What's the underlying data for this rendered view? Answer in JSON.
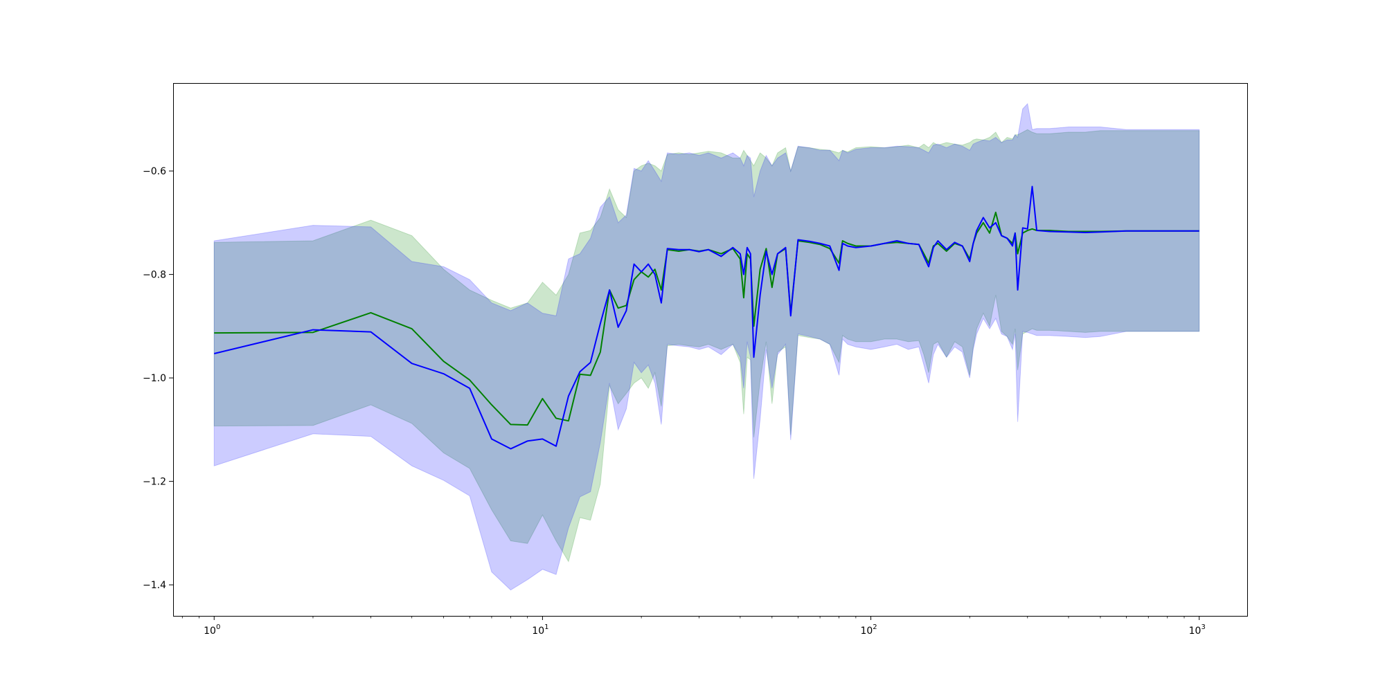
{
  "chart_data": {
    "type": "area",
    "title": "",
    "xlabel": "",
    "ylabel": "",
    "xscale": "log",
    "xlim": [
      0.75,
      1400
    ],
    "ylim": [
      -1.46,
      -0.43
    ],
    "grid": false,
    "x_ticks": [
      {
        "value": 1,
        "base": "10",
        "exp": "0"
      },
      {
        "value": 10,
        "base": "10",
        "exp": "1"
      },
      {
        "value": 100,
        "base": "10",
        "exp": "2"
      },
      {
        "value": 1000,
        "base": "10",
        "exp": "3"
      }
    ],
    "y_ticks": [
      {
        "value": -1.4,
        "label": "−1.4"
      },
      {
        "value": -1.2,
        "label": "−1.2"
      },
      {
        "value": -1.0,
        "label": "−1.0"
      },
      {
        "value": -0.8,
        "label": "−0.8"
      },
      {
        "value": -0.6,
        "label": "−0.6"
      }
    ],
    "series": [
      {
        "color": "#008000",
        "fill_color": "#008000",
        "fill_opacity": 0.2,
        "x": [
          1,
          2,
          3,
          4,
          5,
          6,
          7,
          8,
          9,
          10,
          11,
          12,
          13,
          14,
          15,
          16,
          17,
          18,
          19,
          20,
          21,
          22,
          23,
          24,
          26,
          28,
          30,
          32,
          35,
          38,
          40,
          41,
          42,
          43,
          44,
          46,
          48,
          50,
          52,
          55,
          57,
          60,
          65,
          70,
          75,
          80,
          82,
          85,
          90,
          100,
          110,
          120,
          130,
          140,
          145,
          150,
          155,
          160,
          170,
          180,
          190,
          200,
          205,
          210,
          220,
          230,
          240,
          250,
          260,
          270,
          275,
          280,
          290,
          300,
          310,
          320,
          350,
          400,
          450,
          500,
          600,
          800,
          1000
        ],
        "y": [
          -0.913,
          -0.912,
          -0.874,
          -0.905,
          -0.968,
          -1.004,
          -1.052,
          -1.09,
          -1.091,
          -1.04,
          -1.078,
          -1.083,
          -0.993,
          -0.995,
          -0.95,
          -0.83,
          -0.865,
          -0.86,
          -0.81,
          -0.795,
          -0.805,
          -0.79,
          -0.83,
          -0.752,
          -0.755,
          -0.752,
          -0.755,
          -0.752,
          -0.76,
          -0.75,
          -0.77,
          -0.845,
          -0.76,
          -0.77,
          -0.9,
          -0.79,
          -0.75,
          -0.825,
          -0.76,
          -0.75,
          -0.875,
          -0.735,
          -0.738,
          -0.742,
          -0.75,
          -0.778,
          -0.735,
          -0.74,
          -0.745,
          -0.745,
          -0.74,
          -0.738,
          -0.74,
          -0.742,
          -0.76,
          -0.778,
          -0.745,
          -0.74,
          -0.755,
          -0.74,
          -0.745,
          -0.77,
          -0.74,
          -0.72,
          -0.7,
          -0.72,
          -0.68,
          -0.725,
          -0.73,
          -0.74,
          -0.72,
          -0.76,
          -0.72,
          -0.715,
          -0.712,
          -0.715,
          -0.715,
          -0.717,
          -0.717,
          -0.717,
          -0.716,
          -0.716,
          -0.716
        ],
        "upper": [
          -0.738,
          -0.735,
          -0.695,
          -0.725,
          -0.79,
          -0.83,
          -0.85,
          -0.865,
          -0.855,
          -0.815,
          -0.84,
          -0.8,
          -0.72,
          -0.715,
          -0.69,
          -0.635,
          -0.675,
          -0.69,
          -0.6,
          -0.59,
          -0.585,
          -0.59,
          -0.6,
          -0.568,
          -0.565,
          -0.568,
          -0.565,
          -0.562,
          -0.565,
          -0.575,
          -0.575,
          -0.56,
          -0.57,
          -0.58,
          -0.59,
          -0.565,
          -0.575,
          -0.59,
          -0.565,
          -0.555,
          -0.6,
          -0.553,
          -0.555,
          -0.558,
          -0.56,
          -0.565,
          -0.56,
          -0.563,
          -0.555,
          -0.553,
          -0.555,
          -0.553,
          -0.55,
          -0.555,
          -0.548,
          -0.555,
          -0.545,
          -0.55,
          -0.545,
          -0.548,
          -0.55,
          -0.545,
          -0.54,
          -0.538,
          -0.54,
          -0.535,
          -0.525,
          -0.545,
          -0.535,
          -0.538,
          -0.53,
          -0.53,
          -0.525,
          -0.52,
          -0.525,
          -0.528,
          -0.528,
          -0.525,
          -0.525,
          -0.522,
          -0.522,
          -0.522,
          -0.522
        ],
        "lower": [
          -1.093,
          -1.092,
          -1.052,
          -1.088,
          -1.145,
          -1.175,
          -1.255,
          -1.315,
          -1.32,
          -1.265,
          -1.315,
          -1.355,
          -1.27,
          -1.275,
          -1.205,
          -1.015,
          -1.05,
          -1.03,
          -1.01,
          -1.0,
          -1.02,
          -0.99,
          -1.055,
          -0.938,
          -0.935,
          -0.938,
          -0.94,
          -0.935,
          -0.945,
          -0.935,
          -0.97,
          -1.07,
          -0.96,
          -0.965,
          -1.115,
          -1.005,
          -0.93,
          -1.05,
          -0.95,
          -0.94,
          -1.11,
          -0.918,
          -0.922,
          -0.925,
          -0.935,
          -0.97,
          -0.918,
          -0.925,
          -0.93,
          -0.93,
          -0.925,
          -0.925,
          -0.93,
          -0.928,
          -0.955,
          -0.99,
          -0.935,
          -0.93,
          -0.96,
          -0.93,
          -0.94,
          -0.995,
          -0.94,
          -0.905,
          -0.875,
          -0.9,
          -0.84,
          -0.91,
          -0.92,
          -0.935,
          -0.905,
          -0.985,
          -0.915,
          -0.91,
          -0.905,
          -0.908,
          -0.908,
          -0.91,
          -0.912,
          -0.91,
          -0.91,
          -0.91,
          -0.91
        ]
      },
      {
        "color": "#0000ff",
        "fill_color": "#0000ff",
        "fill_opacity": 0.2,
        "x": [
          1,
          2,
          3,
          4,
          5,
          6,
          7,
          8,
          9,
          10,
          11,
          12,
          13,
          14,
          15,
          16,
          17,
          18,
          19,
          20,
          21,
          22,
          23,
          24,
          26,
          28,
          30,
          32,
          35,
          38,
          40,
          41,
          42,
          43,
          44,
          46,
          48,
          50,
          52,
          55,
          57,
          60,
          65,
          70,
          75,
          80,
          82,
          85,
          90,
          100,
          110,
          120,
          130,
          140,
          145,
          150,
          155,
          160,
          170,
          180,
          190,
          200,
          205,
          210,
          220,
          230,
          240,
          250,
          260,
          270,
          275,
          280,
          290,
          300,
          310,
          320,
          350,
          400,
          450,
          500,
          600,
          800,
          1000
        ],
        "y": [
          -0.953,
          -0.907,
          -0.911,
          -0.972,
          -0.992,
          -1.02,
          -1.118,
          -1.137,
          -1.122,
          -1.118,
          -1.132,
          -1.035,
          -0.988,
          -0.97,
          -0.895,
          -0.83,
          -0.902,
          -0.87,
          -0.78,
          -0.795,
          -0.78,
          -0.8,
          -0.855,
          -0.75,
          -0.752,
          -0.752,
          -0.756,
          -0.752,
          -0.765,
          -0.748,
          -0.76,
          -0.8,
          -0.748,
          -0.76,
          -0.96,
          -0.84,
          -0.755,
          -0.8,
          -0.76,
          -0.748,
          -0.88,
          -0.733,
          -0.736,
          -0.74,
          -0.745,
          -0.792,
          -0.74,
          -0.745,
          -0.748,
          -0.745,
          -0.74,
          -0.735,
          -0.74,
          -0.742,
          -0.765,
          -0.785,
          -0.748,
          -0.735,
          -0.752,
          -0.738,
          -0.745,
          -0.775,
          -0.74,
          -0.715,
          -0.69,
          -0.71,
          -0.7,
          -0.725,
          -0.73,
          -0.745,
          -0.72,
          -0.83,
          -0.71,
          -0.712,
          -0.63,
          -0.715,
          -0.717,
          -0.718,
          -0.719,
          -0.718,
          -0.716,
          -0.716,
          -0.716
        ],
        "upper": [
          -0.735,
          -0.705,
          -0.708,
          -0.775,
          -0.785,
          -0.81,
          -0.855,
          -0.87,
          -0.855,
          -0.875,
          -0.88,
          -0.77,
          -0.76,
          -0.73,
          -0.67,
          -0.65,
          -0.7,
          -0.685,
          -0.595,
          -0.6,
          -0.58,
          -0.6,
          -0.62,
          -0.565,
          -0.568,
          -0.565,
          -0.57,
          -0.565,
          -0.575,
          -0.565,
          -0.575,
          -0.59,
          -0.57,
          -0.575,
          -0.65,
          -0.6,
          -0.57,
          -0.59,
          -0.575,
          -0.565,
          -0.6,
          -0.552,
          -0.555,
          -0.56,
          -0.56,
          -0.58,
          -0.56,
          -0.565,
          -0.558,
          -0.555,
          -0.555,
          -0.552,
          -0.553,
          -0.555,
          -0.56,
          -0.565,
          -0.55,
          -0.548,
          -0.555,
          -0.548,
          -0.552,
          -0.56,
          -0.548,
          -0.545,
          -0.54,
          -0.542,
          -0.535,
          -0.545,
          -0.54,
          -0.54,
          -0.53,
          -0.535,
          -0.48,
          -0.47,
          -0.52,
          -0.518,
          -0.518,
          -0.515,
          -0.515,
          -0.515,
          -0.52,
          -0.52,
          -0.52
        ],
        "lower": [
          -1.17,
          -1.108,
          -1.113,
          -1.17,
          -1.198,
          -1.228,
          -1.375,
          -1.41,
          -1.39,
          -1.37,
          -1.38,
          -1.29,
          -1.23,
          -1.22,
          -1.125,
          -1.01,
          -1.1,
          -1.06,
          -0.97,
          -0.99,
          -0.975,
          -1.01,
          -1.09,
          -0.935,
          -0.938,
          -0.94,
          -0.945,
          -0.94,
          -0.955,
          -0.935,
          -0.96,
          -1.02,
          -0.93,
          -0.96,
          -1.195,
          -1.08,
          -0.945,
          -1.02,
          -0.955,
          -0.935,
          -1.12,
          -0.915,
          -0.92,
          -0.925,
          -0.935,
          -0.995,
          -0.925,
          -0.935,
          -0.94,
          -0.945,
          -0.94,
          -0.935,
          -0.945,
          -0.94,
          -0.975,
          -1.01,
          -0.955,
          -0.935,
          -0.96,
          -0.94,
          -0.95,
          -1.0,
          -0.945,
          -0.915,
          -0.885,
          -0.905,
          -0.885,
          -0.915,
          -0.92,
          -0.945,
          -0.915,
          -1.085,
          -0.91,
          -0.912,
          -0.915,
          -0.918,
          -0.918,
          -0.92,
          -0.922,
          -0.92,
          -0.91,
          -0.91,
          -0.91
        ]
      }
    ]
  }
}
